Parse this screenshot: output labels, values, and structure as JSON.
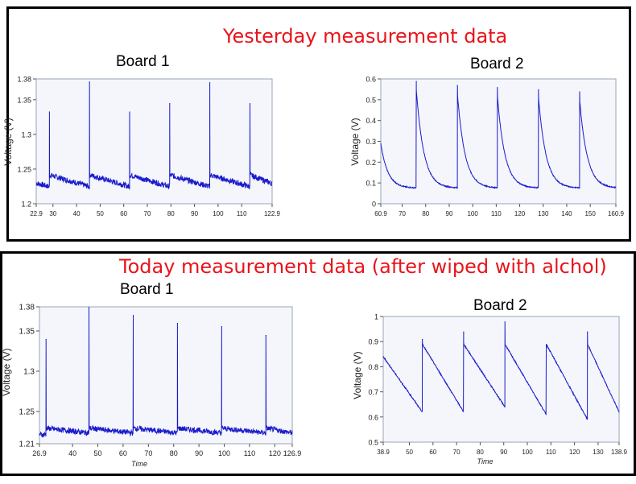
{
  "sections": [
    {
      "title": "Yesterday measurement data",
      "boards": [
        "Board 1",
        "Board 2"
      ]
    },
    {
      "title": "Today measurement data (after wiped with alchol)",
      "boards": [
        "Board 1",
        "Board 2"
      ]
    }
  ],
  "colors": {
    "line": "#1a1acc",
    "plot_bg": "#f4f6fb",
    "title": "#e8141b"
  },
  "chart_data": [
    {
      "type": "line",
      "section": "Yesterday measurement data",
      "title": "Board 1",
      "xlabel": "",
      "ylabel": "Voltage (V)",
      "xlim": [
        22.9,
        122.9
      ],
      "ylim": [
        1.2,
        1.38
      ],
      "xticks": [
        "22.9",
        "30",
        "40",
        "50",
        "60",
        "70",
        "80",
        "90",
        "100",
        "110",
        "122.9"
      ],
      "xtick_values": [
        22.9,
        30,
        40,
        50,
        60,
        70,
        80,
        90,
        100,
        110,
        122.9
      ],
      "yticks": [
        "1.2",
        "1.25",
        "1.3",
        "1.35",
        "1.38"
      ],
      "ytick_values": [
        1.2,
        1.25,
        1.3,
        1.35,
        1.38
      ],
      "waveform": "sawtooth",
      "spike_x": [
        28.5,
        45.5,
        62.5,
        79.5,
        96.5,
        113.5
      ],
      "spike_peaks": [
        1.333,
        1.376,
        1.333,
        1.345,
        1.375,
        1.345
      ],
      "post_spike_level": 1.24,
      "pre_spike_level": 1.223,
      "start_level": 1.228,
      "grid": false
    },
    {
      "type": "line",
      "section": "Yesterday measurement data",
      "title": "Board 2",
      "xlabel": "",
      "ylabel": "Voltage (V)",
      "xlim": [
        60.9,
        160.9
      ],
      "ylim": [
        0,
        0.6
      ],
      "xticks": [
        "60.9",
        "70",
        "80",
        "90",
        "100",
        "110",
        "120",
        "130",
        "140",
        "150",
        "160.9"
      ],
      "xtick_values": [
        60.9,
        70,
        80,
        90,
        100,
        110,
        120,
        130,
        140,
        150,
        160.9
      ],
      "yticks": [
        "0",
        "0.1",
        "0.2",
        "0.3",
        "0.4",
        "0.5",
        "0.6"
      ],
      "ytick_values": [
        0,
        0.1,
        0.2,
        0.3,
        0.4,
        0.5,
        0.6
      ],
      "waveform": "decay",
      "spike_x": [
        76,
        93.5,
        110.5,
        128,
        145.5
      ],
      "spike_peaks": [
        0.59,
        0.57,
        0.56,
        0.55,
        0.54
      ],
      "baseline": 0.075,
      "start_level": 0.29,
      "grid": false
    },
    {
      "type": "line",
      "section": "Today measurement data (after wiped with alchol)",
      "title": "Board 1",
      "xlabel": "Time",
      "ylabel": "Voltage (V)",
      "xlim": [
        26.9,
        126.9
      ],
      "ylim": [
        1.21,
        1.38
      ],
      "xticks": [
        "26.9",
        "40",
        "50",
        "60",
        "70",
        "80",
        "90",
        "100",
        "110",
        "120",
        "126.9"
      ],
      "xtick_values": [
        26.9,
        40,
        50,
        60,
        70,
        80,
        90,
        100,
        110,
        120,
        126.9
      ],
      "yticks": [
        "1.21",
        "1.25",
        "1.3",
        "1.35",
        "1.38"
      ],
      "ytick_values": [
        1.21,
        1.25,
        1.3,
        1.35,
        1.38
      ],
      "waveform": "flat-spikes",
      "spike_x": [
        29.5,
        46.5,
        64,
        81.5,
        99,
        116.5
      ],
      "spike_peaks": [
        1.34,
        1.38,
        1.37,
        1.36,
        1.356,
        1.345
      ],
      "post_spike_level": 1.228,
      "pre_spike_level": 1.222,
      "start_level": 1.22,
      "grid": false
    },
    {
      "type": "line",
      "section": "Today measurement data (after wiped with alchol)",
      "title": "Board 2",
      "xlabel": "Time",
      "ylabel": "Voltage (V)",
      "xlim": [
        38.9,
        138.9
      ],
      "ylim": [
        0.5,
        1
      ],
      "xticks": [
        "38.9",
        "50",
        "60",
        "70",
        "80",
        "90",
        "100",
        "110",
        "120",
        "130",
        "138.9"
      ],
      "xtick_values": [
        38.9,
        50,
        60,
        70,
        80,
        90,
        100,
        110,
        120,
        130,
        138.9
      ],
      "yticks": [
        "0.5",
        "0.6",
        "0.7",
        "0.8",
        "0.9",
        "1"
      ],
      "ytick_values": [
        0.5,
        0.6,
        0.7,
        0.8,
        0.9,
        1
      ],
      "waveform": "linear-ramp",
      "spike_x": [
        55.5,
        73,
        90.5,
        108,
        125.5
      ],
      "spike_peaks": [
        0.91,
        0.94,
        0.98,
        0.88,
        0.94
      ],
      "post_spike_level": 0.89,
      "pre_spike_level": 0.62,
      "pre_spike_levels": [
        0.62,
        0.62,
        0.64,
        0.61,
        0.59
      ],
      "start_level": 0.84,
      "end_level": 0.62,
      "grid": false
    }
  ]
}
